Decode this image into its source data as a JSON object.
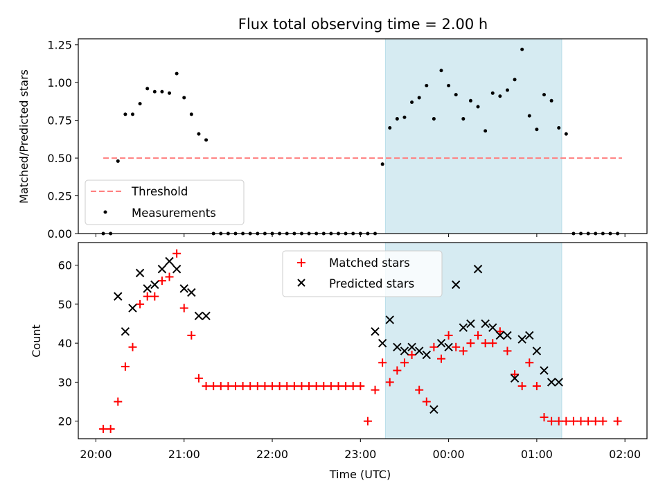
{
  "chart_data": [
    {
      "type": "scatter",
      "title": "Flux total observing time = 2.00 h",
      "xlabel": "",
      "ylabel": "Matched/Predicted stars",
      "ylim": [
        0,
        1.29
      ],
      "yticks": [
        "0.00",
        "0.25",
        "0.50",
        "0.75",
        "1.00",
        "1.25"
      ],
      "ytick_values": [
        0,
        0.25,
        0.5,
        0.75,
        1.0,
        1.25
      ],
      "shaded_span": [
        "23:17",
        "01:17"
      ],
      "legend": {
        "position": "lower-left",
        "entries": [
          "Threshold",
          "Measurements"
        ]
      },
      "threshold": {
        "name": "Threshold",
        "value": 0.5,
        "x_start": "20:05",
        "x_end": "01:58",
        "color": "#ff7f7f"
      },
      "measurements": {
        "name": "Measurements",
        "x": [
          "20:05",
          "20:10",
          "20:15",
          "20:20",
          "20:25",
          "20:30",
          "20:35",
          "20:40",
          "20:45",
          "20:50",
          "20:55",
          "21:00",
          "21:05",
          "21:10",
          "21:15",
          "21:20",
          "21:25",
          "21:30",
          "21:35",
          "21:40",
          "21:45",
          "21:50",
          "21:55",
          "22:00",
          "22:05",
          "22:10",
          "22:15",
          "22:20",
          "22:25",
          "22:30",
          "22:35",
          "22:40",
          "22:45",
          "22:50",
          "22:55",
          "23:00",
          "23:05",
          "23:10",
          "23:15",
          "23:20",
          "23:25",
          "23:30",
          "23:35",
          "23:40",
          "23:45",
          "23:50",
          "23:55",
          "00:00",
          "00:05",
          "00:10",
          "00:15",
          "00:20",
          "00:25",
          "00:30",
          "00:35",
          "00:40",
          "00:45",
          "00:50",
          "00:55",
          "01:00",
          "01:05",
          "01:10",
          "01:15",
          "01:20",
          "01:25",
          "01:30",
          "01:35",
          "01:40",
          "01:45",
          "01:50",
          "01:55"
        ],
        "y": [
          0.0,
          0.0,
          0.48,
          0.79,
          0.79,
          0.86,
          0.96,
          0.94,
          0.94,
          0.93,
          1.06,
          0.9,
          0.79,
          0.66,
          0.62,
          0.0,
          0.0,
          0.0,
          0.0,
          0.0,
          0.0,
          0.0,
          0.0,
          0.0,
          0.0,
          0.0,
          0.0,
          0.0,
          0.0,
          0.0,
          0.0,
          0.0,
          0.0,
          0.0,
          0.0,
          0.0,
          0.0,
          0.0,
          0.46,
          0.7,
          0.76,
          0.77,
          0.87,
          0.9,
          0.98,
          0.76,
          1.08,
          0.98,
          0.92,
          0.76,
          0.88,
          0.84,
          0.68,
          0.93,
          0.91,
          0.95,
          1.02,
          1.22,
          0.78,
          0.69,
          0.92,
          0.88,
          0.7,
          0.66,
          0.0,
          0.0,
          0.0,
          0.0,
          0.0,
          0.0,
          0.0
        ],
        "x_trailing": [
          "01:30",
          "01:35",
          "01:40",
          "01:45",
          "01:50",
          "01:55"
        ],
        "y_trailing": [
          0.0,
          0.0,
          0.0,
          0.0,
          0.0,
          0.0
        ],
        "color": "#000000"
      }
    },
    {
      "type": "scatter",
      "title": "",
      "xlabel": "Time (UTC)",
      "ylabel": "Count",
      "ylim": [
        15.5,
        65.8
      ],
      "yticks": [
        "20",
        "30",
        "40",
        "50",
        "60"
      ],
      "ytick_values": [
        20,
        30,
        40,
        50,
        60
      ],
      "xticks": [
        "20:00",
        "21:00",
        "22:00",
        "23:00",
        "00:00",
        "01:00",
        "02:00"
      ],
      "shaded_span": [
        "23:17",
        "01:17"
      ],
      "legend": {
        "position": "upper-center",
        "entries": [
          "Matched stars",
          "Predicted stars"
        ]
      },
      "series": [
        {
          "name": "Matched stars",
          "marker": "plus",
          "color": "#ff0000",
          "x": [
            "20:05",
            "20:10",
            "20:15",
            "20:20",
            "20:25",
            "20:30",
            "20:35",
            "20:40",
            "20:45",
            "20:50",
            "20:55",
            "21:00",
            "21:05",
            "21:10",
            "21:15",
            "21:20",
            "21:25",
            "21:30",
            "21:35",
            "21:40",
            "21:45",
            "21:50",
            "21:55",
            "22:00",
            "22:05",
            "22:10",
            "22:15",
            "22:20",
            "22:25",
            "22:30",
            "22:35",
            "22:40",
            "22:45",
            "22:50",
            "22:55",
            "23:00",
            "23:05",
            "23:10",
            "23:15",
            "23:20",
            "23:25",
            "23:30",
            "23:35",
            "23:40",
            "23:45",
            "23:50",
            "23:55",
            "00:00",
            "00:05",
            "00:10",
            "00:15",
            "00:20",
            "00:25",
            "00:30",
            "00:35",
            "00:40",
            "00:45",
            "00:50",
            "00:55",
            "01:00",
            "01:05",
            "01:10",
            "01:15",
            "01:20",
            "01:25",
            "01:30",
            "01:35",
            "01:40",
            "01:45",
            "01:55"
          ],
          "y": [
            18,
            18,
            25,
            34,
            39,
            50,
            52,
            52,
            56,
            57,
            63,
            49,
            42,
            31,
            29,
            29,
            29,
            29,
            29,
            29,
            29,
            29,
            29,
            29,
            29,
            29,
            29,
            29,
            29,
            29,
            29,
            29,
            29,
            29,
            29,
            29,
            20,
            28,
            35,
            30,
            33,
            35,
            37,
            28,
            25,
            39,
            36,
            42,
            39,
            38,
            40,
            42,
            40,
            40,
            43,
            38,
            32,
            29,
            35,
            29,
            21,
            20,
            20,
            20,
            20,
            20,
            20,
            20,
            20,
            20
          ]
        },
        {
          "name": "Predicted stars",
          "marker": "x",
          "color": "#000000",
          "x": [
            "20:15",
            "20:20",
            "20:25",
            "20:30",
            "20:35",
            "20:40",
            "20:45",
            "20:50",
            "20:55",
            "21:00",
            "21:05",
            "21:10",
            "21:15",
            "23:10",
            "23:15",
            "23:20",
            "23:25",
            "23:30",
            "23:35",
            "23:40",
            "23:45",
            "23:50",
            "23:55",
            "00:00",
            "00:05",
            "00:10",
            "00:15",
            "00:20",
            "00:25",
            "00:30",
            "00:35",
            "00:40",
            "00:45",
            "00:50",
            "00:55",
            "01:00",
            "01:05",
            "01:10",
            "01:15"
          ],
          "y": [
            52,
            43,
            49,
            58,
            54,
            55,
            59,
            61,
            59,
            54,
            53,
            47,
            47,
            43,
            40,
            46,
            39,
            38,
            39,
            38,
            37,
            23,
            40,
            39,
            55,
            44,
            45,
            59,
            45,
            44,
            42,
            42,
            31,
            41,
            42,
            38,
            33,
            30,
            30
          ]
        }
      ]
    }
  ]
}
